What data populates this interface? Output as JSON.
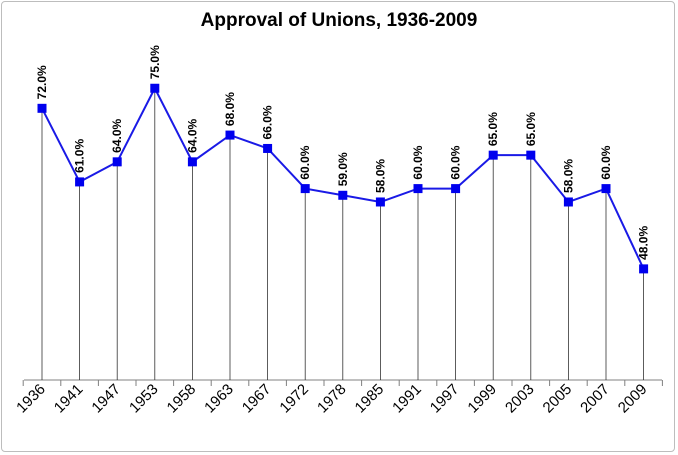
{
  "chart_data": {
    "type": "line",
    "title": "Approval of Unions, 1936-2009",
    "xlabel": "",
    "ylabel": "",
    "categories": [
      "1936",
      "1941",
      "1947",
      "1953",
      "1958",
      "1963",
      "1967",
      "1972",
      "1978",
      "1985",
      "1991",
      "1997",
      "1999",
      "2003",
      "2005",
      "2007",
      "2009"
    ],
    "series": [
      {
        "values": [
          72.0,
          61.0,
          64.0,
          75.0,
          64.0,
          68.0,
          66.0,
          60.0,
          59.0,
          58.0,
          60.0,
          60.0,
          65.0,
          65.0,
          58.0,
          60.0,
          48.0
        ],
        "labels": [
          "72.0%",
          "61.0%",
          "64.0%",
          "75.0%",
          "64.0%",
          "68.0%",
          "66.0%",
          "60.0%",
          "59.0%",
          "58.0%",
          "60.0%",
          "60.0%",
          "65.0%",
          "65.0%",
          "58.0%",
          "60.0%",
          "48.0%"
        ],
        "color": "#1a1ae6",
        "marker_color": "#0000ee"
      }
    ],
    "ylim": [
      40,
      80
    ],
    "grid": false,
    "legend": "none",
    "drop_lines": true,
    "axis_color": "#808080"
  }
}
